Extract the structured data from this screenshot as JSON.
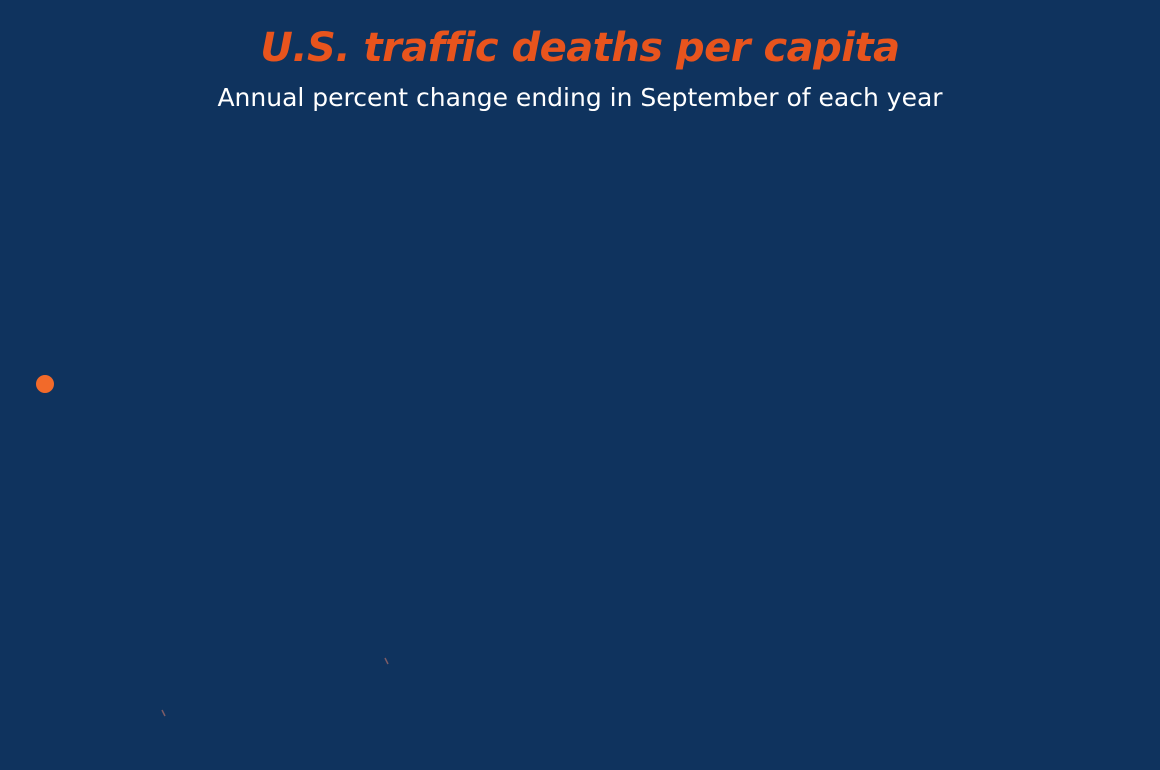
{
  "colors": {
    "background": "#0f335e",
    "title": "#e8541d",
    "subtitle": "#ffffff",
    "marker": "#f26a2a",
    "stray_mark": "#7d5c66"
  },
  "chart_data": {
    "type": "line",
    "title": "U.S. traffic deaths per capita",
    "subtitle": "Annual percent change ending in September of each year",
    "xlabel": "",
    "ylabel": "",
    "grid": false,
    "legend": "none",
    "series": [
      {
        "values": [
          0
        ]
      }
    ],
    "annotations": []
  }
}
